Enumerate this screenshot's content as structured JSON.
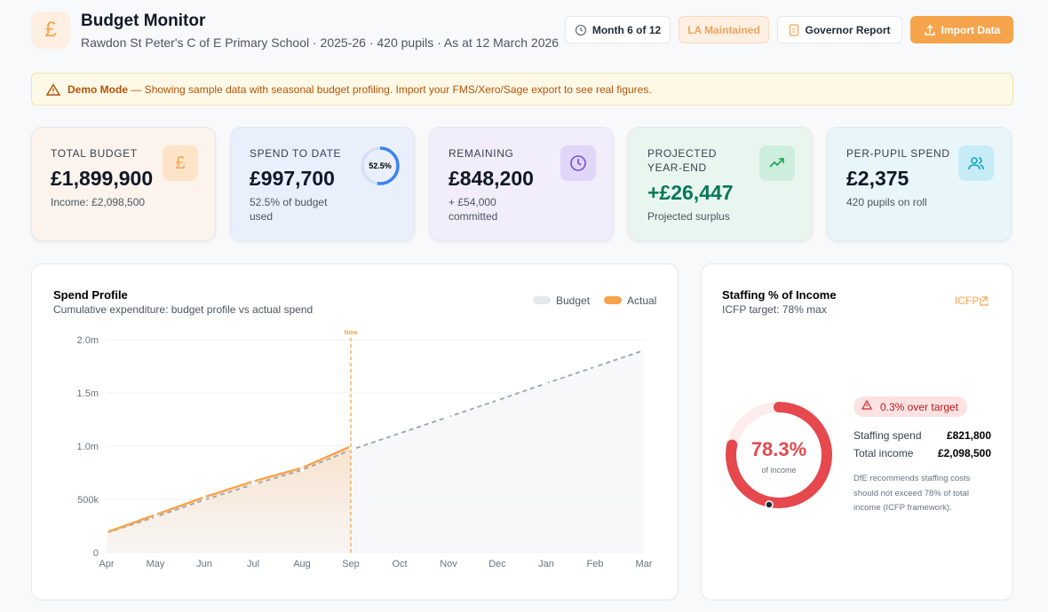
{
  "header": {
    "icon": "£",
    "title": "Budget Monitor",
    "subtitle": "Rawdon St Peter's C of E Primary School · 2025-26 · 420 pupils · As at 12 March 2026",
    "buttons": [
      "Month 6 of 12",
      "LA Maintained",
      "Governor Report",
      "Import Data"
    ]
  },
  "banner": {
    "label": "Demo Mode",
    "text": " — Showing sample data with seasonal budget profiling. Import your FMS/Xero/Sage export to see real figures."
  },
  "kpis": [
    {
      "label": "TOTAL BUDGET",
      "value": "£1,899,900",
      "sub": "Income: £2,098,500",
      "icon": "£"
    },
    {
      "label": "SPEND TO DATE",
      "value": "£997,700",
      "sub": "52.5% of budget used",
      "ring": {
        "value": 52.5,
        "label": "52.5%"
      }
    },
    {
      "label": "REMAINING",
      "value": "£848,200",
      "sub": "+ £54,000 committed"
    },
    {
      "label": "PROJECTED YEAR-END",
      "value": "+£26,447",
      "sub": "Projected surplus"
    },
    {
      "label": "PER-PUPIL SPEND",
      "value": "£2,375",
      "sub": "420 pupils on roll"
    }
  ],
  "chart_data": {
    "type": "line",
    "title": "Spend Profile",
    "subtitle": "Cumulative expenditure: budget profile vs actual spend",
    "categories": [
      "Apr",
      "May",
      "Jun",
      "Jul",
      "Aug",
      "Sep",
      "Oct",
      "Nov",
      "Dec",
      "Jan",
      "Feb",
      "Mar"
    ],
    "series": [
      {
        "name": "Budget",
        "color": "#9ca3af",
        "values": [
          185000,
          335000,
          495000,
          640000,
          775000,
          965000,
          1120000,
          1275000,
          1430000,
          1590000,
          1745000,
          1899900
        ]
      },
      {
        "name": "Actual",
        "color": "#f6a44c",
        "values": [
          190000,
          355000,
          520000,
          668000,
          795000,
          997700,
          null,
          null,
          null,
          null,
          null,
          null
        ]
      }
    ],
    "ylim": [
      0,
      2000000
    ],
    "yticks": [
      0,
      {
        "value": 500000,
        "label": "500k"
      },
      {
        "value": 1000000,
        "label": "1.0m"
      },
      {
        "value": 1500000,
        "label": "1.5m"
      },
      {
        "value": 2000000,
        "label": "2.0m"
      }
    ],
    "grid": true,
    "annotation": {
      "text": "Now",
      "at": "Sep"
    }
  },
  "staffing": {
    "title": "Staffing % of Income",
    "subtitle": "ICFP target: 78% max",
    "link": "ICFP",
    "donut": {
      "value": 78.3,
      "label": "78.3%",
      "caption": "of income"
    },
    "badge": "0.3% over target",
    "rows": [
      {
        "label": "Staffing spend",
        "value": "£821,800"
      },
      {
        "label": "Total income",
        "value": "£2,098,500"
      }
    ],
    "note": "DfE recommends staffing costs should not exceed 78% of total income (ICFP framework)."
  }
}
